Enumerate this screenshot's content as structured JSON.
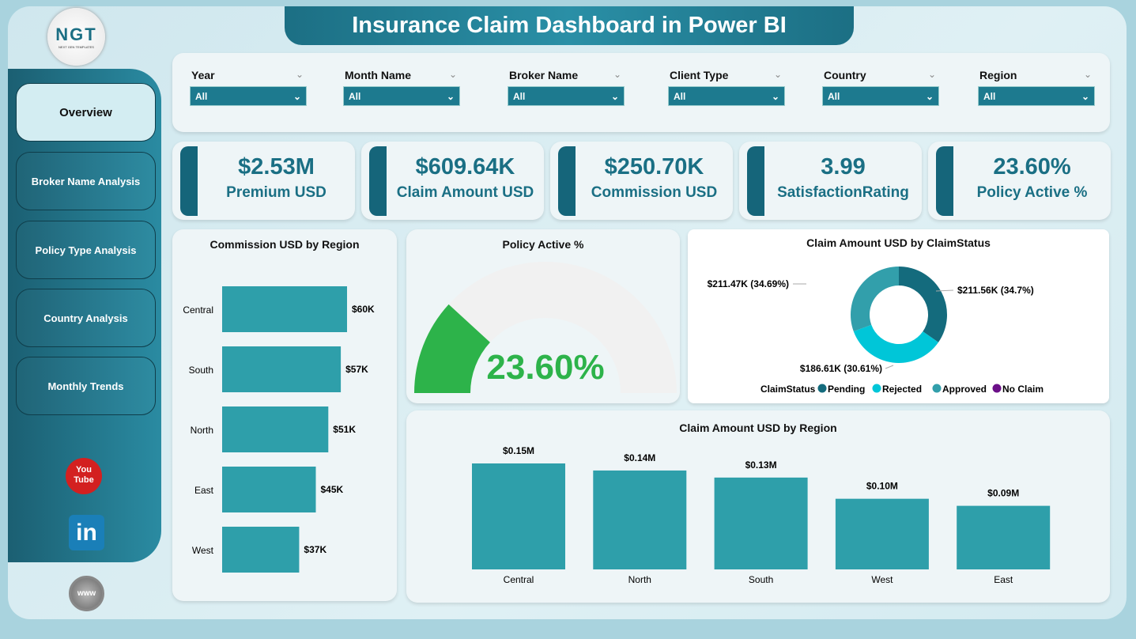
{
  "header": {
    "title": "Insurance Claim Dashboard in Power BI"
  },
  "logo": {
    "text": "NGT",
    "subtext": "NEXT GEN TEMPLATES"
  },
  "sidebar": {
    "items": [
      {
        "label": "Overview",
        "active": true
      },
      {
        "label": "Broker Name Analysis"
      },
      {
        "label": "Policy Type Analysis"
      },
      {
        "label": "Country Analysis"
      },
      {
        "label": "Monthly Trends"
      }
    ],
    "social": [
      {
        "icon": "youtube-icon",
        "text": "You Tube"
      },
      {
        "icon": "linkedin-icon",
        "text": "in"
      },
      {
        "icon": "globe-icon",
        "text": "www"
      }
    ]
  },
  "filters": [
    {
      "label": "Year",
      "value": "All"
    },
    {
      "label": "Month Name",
      "value": "All"
    },
    {
      "label": "Broker Name",
      "value": "All"
    },
    {
      "label": "Client Type",
      "value": "All"
    },
    {
      "label": "Country",
      "value": "All"
    },
    {
      "label": "Region",
      "value": "All"
    }
  ],
  "kpis": [
    {
      "value": "$2.53M",
      "label": "Premium USD"
    },
    {
      "value": "$609.64K",
      "label": "Claim Amount USD"
    },
    {
      "value": "$250.70K",
      "label": "Commission USD"
    },
    {
      "value": "3.99",
      "label": "SatisfactionRating"
    },
    {
      "value": "23.60%",
      "label": "Policy Active %"
    }
  ],
  "colors": {
    "accent": "#1a6f84",
    "bar": "#2e9faa",
    "gauge": "#2db34a"
  },
  "chart_data": [
    {
      "type": "bar",
      "orientation": "horizontal",
      "title": "Commission USD by Region",
      "categories": [
        "Central",
        "South",
        "North",
        "East",
        "West"
      ],
      "values": [
        60,
        57,
        51,
        45,
        37
      ],
      "labels": [
        "$60K",
        "$57K",
        "$51K",
        "$45K",
        "$37K"
      ],
      "unit": "K USD"
    },
    {
      "type": "gauge",
      "title": "Policy Active %",
      "value": 23.6,
      "label": "23.60%",
      "min": 0,
      "max": 100
    },
    {
      "type": "pie",
      "donut": true,
      "title": "Claim Amount USD by ClaimStatus",
      "legend_title": "ClaimStatus",
      "legend": "bottom",
      "series": [
        {
          "name": "Pending",
          "value": 211.56,
          "label": "$211.56K (34.7%)",
          "color": "#146b7d"
        },
        {
          "name": "Rejected",
          "value": 211.47,
          "label": "$211.47K (34.69%)",
          "color": "#00c6d8"
        },
        {
          "name": "Approved",
          "value": 186.61,
          "label": "$186.61K (30.61%)",
          "color": "#329fab"
        },
        {
          "name": "No Claim",
          "value": 0,
          "color": "#6b1088"
        }
      ]
    },
    {
      "type": "bar",
      "title": "Claim Amount USD by Region",
      "categories": [
        "Central",
        "North",
        "South",
        "West",
        "East"
      ],
      "values": [
        0.15,
        0.14,
        0.13,
        0.1,
        0.09
      ],
      "labels": [
        "$0.15M",
        "$0.14M",
        "$0.13M",
        "$0.10M",
        "$0.09M"
      ],
      "unit": "M USD"
    }
  ]
}
